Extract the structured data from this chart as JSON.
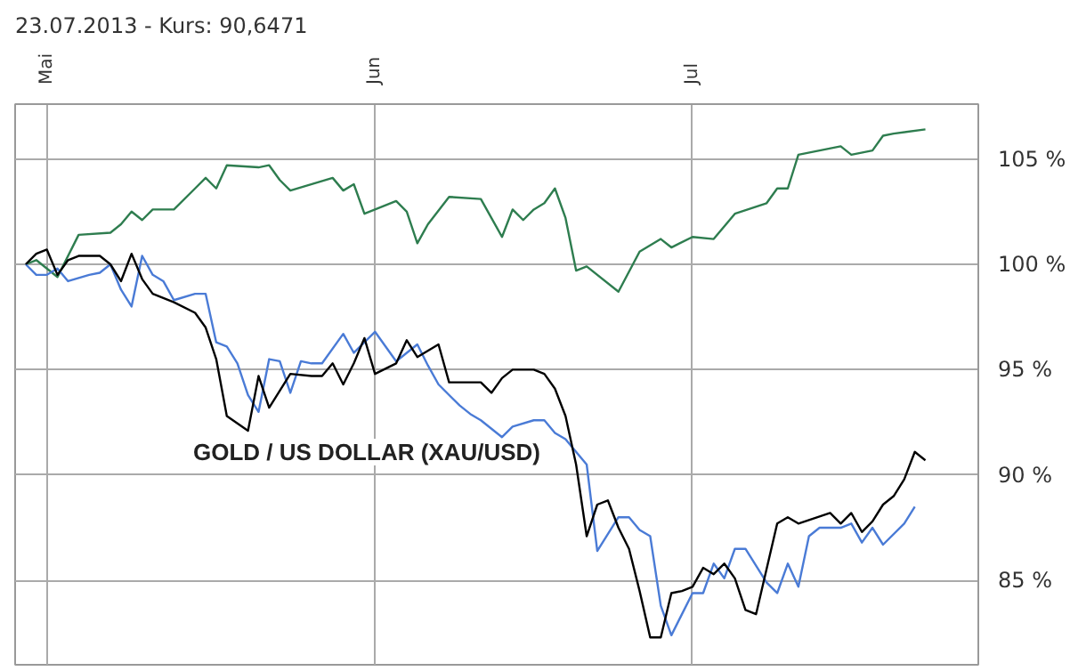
{
  "chart_data": {
    "type": "line",
    "title": "23.07.2013  -  Kurs: 90,6471",
    "xlim": [
      "2013-04-28",
      "2013-07-28"
    ],
    "xticks": [
      {
        "value": "2013-05-01",
        "label": "Mai"
      },
      {
        "value": "2013-06-01",
        "label": "Jun"
      },
      {
        "value": "2013-07-01",
        "label": "Jul"
      }
    ],
    "ylim": [
      81,
      107.6
    ],
    "yticks": [
      {
        "value": 85,
        "label": "85 %"
      },
      {
        "value": 90,
        "label": "90 %"
      },
      {
        "value": 95,
        "label": "95 %"
      },
      {
        "value": 100,
        "label": "100 %"
      },
      {
        "value": 105,
        "label": "105 %"
      }
    ],
    "grid": true,
    "series": [
      {
        "color": "#2e7d4f",
        "x": [
          "2013-04-29",
          "2013-04-30",
          "2013-05-02",
          "2013-05-04",
          "2013-05-07",
          "2013-05-08",
          "2013-05-09",
          "2013-05-10",
          "2013-05-11",
          "2013-05-13",
          "2013-05-15",
          "2013-05-16",
          "2013-05-17",
          "2013-05-18",
          "2013-05-21",
          "2013-05-22",
          "2013-05-23",
          "2013-05-24",
          "2013-05-28",
          "2013-05-29",
          "2013-05-30",
          "2013-05-31",
          "2013-06-03",
          "2013-06-04",
          "2013-06-05",
          "2013-06-06",
          "2013-06-08",
          "2013-06-11",
          "2013-06-13",
          "2013-06-14",
          "2013-06-15",
          "2013-06-16",
          "2013-06-17",
          "2013-06-18",
          "2013-06-19",
          "2013-06-20",
          "2013-06-21",
          "2013-06-24",
          "2013-06-26",
          "2013-06-28",
          "2013-06-29",
          "2013-07-01",
          "2013-07-03",
          "2013-07-05",
          "2013-07-08",
          "2013-07-09",
          "2013-07-10",
          "2013-07-11",
          "2013-07-13",
          "2013-07-15",
          "2013-07-16",
          "2013-07-18",
          "2013-07-19",
          "2013-07-20",
          "2013-07-23"
        ],
        "values": [
          100,
          100.2,
          99.4,
          101.4,
          101.5,
          101.9,
          102.5,
          102.1,
          102.6,
          102.6,
          103.6,
          104.1,
          103.6,
          104.7,
          104.6,
          104.7,
          104.0,
          103.5,
          104.1,
          103.5,
          103.8,
          102.4,
          103.0,
          102.5,
          101.0,
          101.9,
          103.2,
          103.1,
          101.3,
          102.6,
          102.1,
          102.6,
          102.9,
          103.6,
          102.2,
          99.7,
          99.9,
          98.7,
          100.6,
          101.2,
          100.8,
          101.3,
          101.2,
          102.4,
          102.9,
          103.6,
          103.6,
          105.2,
          105.4,
          105.6,
          105.2,
          105.4,
          106.1,
          106.2,
          106.4
        ]
      },
      {
        "color": "#4a7bd6",
        "x": [
          "2013-04-29",
          "2013-04-30",
          "2013-05-01",
          "2013-05-02",
          "2013-05-03",
          "2013-05-05",
          "2013-05-06",
          "2013-05-07",
          "2013-05-08",
          "2013-05-09",
          "2013-05-10",
          "2013-05-11",
          "2013-05-12",
          "2013-05-13",
          "2013-05-15",
          "2013-05-16",
          "2013-05-17",
          "2013-05-18",
          "2013-05-19",
          "2013-05-20",
          "2013-05-21",
          "2013-05-22",
          "2013-05-23",
          "2013-05-24",
          "2013-05-25",
          "2013-05-26",
          "2013-05-27",
          "2013-05-29",
          "2013-05-30",
          "2013-06-01",
          "2013-06-03",
          "2013-06-05",
          "2013-06-06",
          "2013-06-07",
          "2013-06-09",
          "2013-06-10",
          "2013-06-11",
          "2013-06-13",
          "2013-06-14",
          "2013-06-16",
          "2013-06-17",
          "2013-06-18",
          "2013-06-19",
          "2013-06-21",
          "2013-06-22",
          "2013-06-24",
          "2013-06-25",
          "2013-06-26",
          "2013-06-27",
          "2013-06-28",
          "2013-06-29",
          "2013-07-01",
          "2013-07-02",
          "2013-07-03",
          "2013-07-04",
          "2013-07-05",
          "2013-07-06",
          "2013-07-08",
          "2013-07-09",
          "2013-07-10",
          "2013-07-11",
          "2013-07-12",
          "2013-07-13",
          "2013-07-15",
          "2013-07-16",
          "2013-07-17",
          "2013-07-18",
          "2013-07-19",
          "2013-07-21",
          "2013-07-22"
        ],
        "values": [
          100,
          99.5,
          99.5,
          99.8,
          99.2,
          99.5,
          99.6,
          100,
          98.8,
          98.0,
          100.4,
          99.5,
          99.2,
          98.3,
          98.6,
          98.6,
          96.3,
          96.1,
          95.3,
          93.8,
          93.0,
          95.5,
          95.4,
          93.9,
          95.4,
          95.3,
          95.3,
          96.7,
          95.8,
          96.8,
          95.4,
          96.2,
          95.2,
          94.3,
          93.3,
          92.9,
          92.6,
          91.8,
          92.3,
          92.6,
          92.6,
          92.0,
          91.7,
          90.5,
          86.4,
          88.0,
          88.0,
          87.4,
          87.1,
          83.8,
          82.4,
          84.4,
          84.4,
          85.8,
          85.1,
          86.5,
          86.5,
          84.9,
          84.4,
          85.8,
          84.7,
          87.1,
          87.5,
          87.5,
          87.7,
          86.8,
          87.5,
          86.7,
          87.7,
          88.5
        ]
      },
      {
        "name": "GOLD / US DOLLAR (XAU/USD)",
        "color": "#000000",
        "x": [
          "2013-04-29",
          "2013-04-30",
          "2013-05-01",
          "2013-05-02",
          "2013-05-03",
          "2013-05-04",
          "2013-05-06",
          "2013-05-07",
          "2013-05-08",
          "2013-05-09",
          "2013-05-10",
          "2013-05-11",
          "2013-05-13",
          "2013-05-15",
          "2013-05-16",
          "2013-05-17",
          "2013-05-18",
          "2013-05-20",
          "2013-05-21",
          "2013-05-22",
          "2013-05-24",
          "2013-05-26",
          "2013-05-27",
          "2013-05-28",
          "2013-05-29",
          "2013-05-30",
          "2013-05-31",
          "2013-06-01",
          "2013-06-03",
          "2013-06-04",
          "2013-06-05",
          "2013-06-07",
          "2013-06-08",
          "2013-06-11",
          "2013-06-12",
          "2013-06-13",
          "2013-06-14",
          "2013-06-16",
          "2013-06-17",
          "2013-06-18",
          "2013-06-19",
          "2013-06-20",
          "2013-06-21",
          "2013-06-22",
          "2013-06-23",
          "2013-06-24",
          "2013-06-25",
          "2013-06-26",
          "2013-06-27",
          "2013-06-28",
          "2013-06-29",
          "2013-06-30",
          "2013-07-01",
          "2013-07-02",
          "2013-07-03",
          "2013-07-04",
          "2013-07-05",
          "2013-07-06",
          "2013-07-07",
          "2013-07-09",
          "2013-07-10",
          "2013-07-11",
          "2013-07-14",
          "2013-07-15",
          "2013-07-16",
          "2013-07-17",
          "2013-07-18",
          "2013-07-19",
          "2013-07-20",
          "2013-07-21",
          "2013-07-22",
          "2013-07-23"
        ],
        "values": [
          100,
          100.5,
          100.7,
          99.5,
          100.2,
          100.4,
          100.4,
          100,
          99.2,
          100.5,
          99.3,
          98.6,
          98.2,
          97.7,
          97.0,
          95.5,
          92.8,
          92.1,
          94.7,
          93.2,
          94.8,
          94.7,
          94.7,
          95.3,
          94.3,
          95.3,
          96.5,
          94.8,
          95.3,
          96.4,
          95.6,
          96.2,
          94.4,
          94.4,
          93.9,
          94.6,
          95.0,
          95.0,
          94.8,
          94.1,
          92.8,
          90.5,
          87.1,
          88.6,
          88.8,
          87.5,
          86.5,
          84.5,
          82.3,
          82.3,
          84.4,
          84.5,
          84.7,
          85.6,
          85.3,
          85.8,
          85.1,
          83.6,
          83.4,
          87.7,
          88.0,
          87.7,
          88.2,
          87.7,
          88.2,
          87.3,
          87.8,
          88.6,
          89.0,
          89.8,
          91.1,
          90.7
        ]
      }
    ]
  }
}
